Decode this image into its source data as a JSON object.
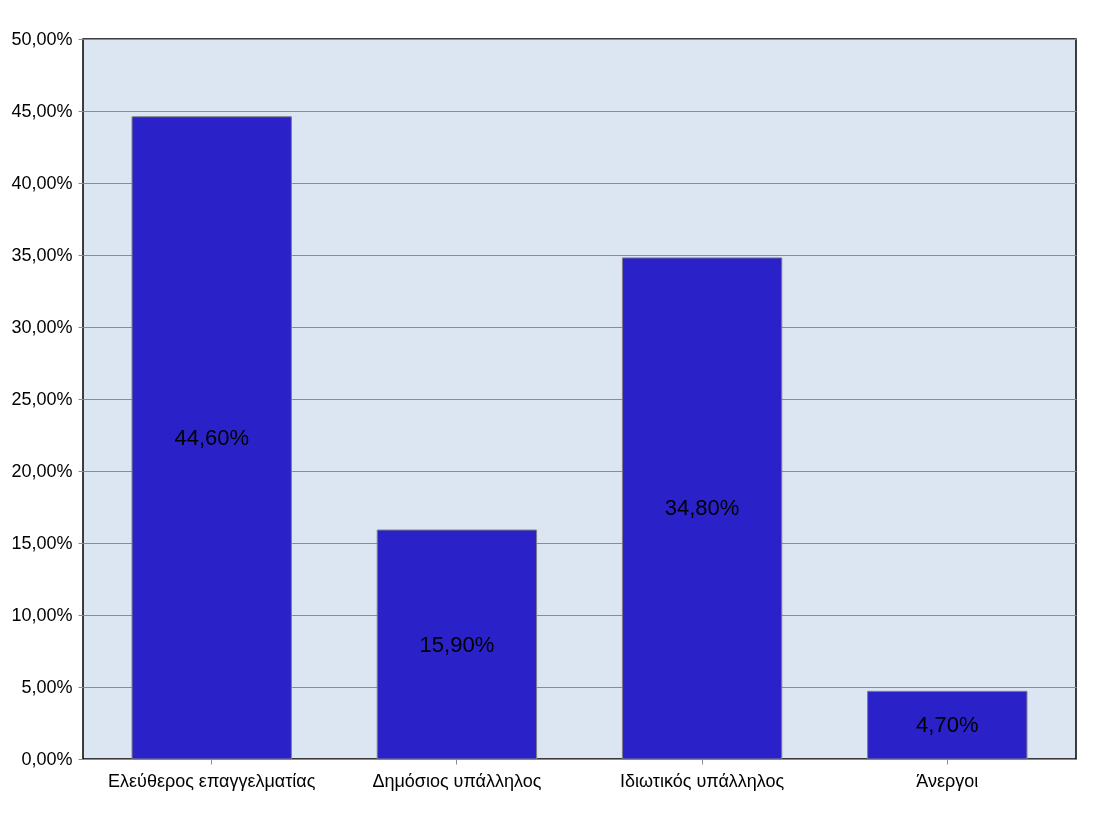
{
  "chart_data": {
    "type": "bar",
    "categories": [
      "Ελεύθερος επαγγελματίας",
      "Δημόσιος υπάλληλος",
      "Ιδιωτικός υπάλληλος",
      "Άνεργοι"
    ],
    "series": [
      {
        "color": "#2a22c8",
        "values": [
          44.6,
          15.9,
          34.8,
          4.7
        ]
      }
    ],
    "value_labels": [
      "44,60%",
      "15,90%",
      "34,80%",
      "4,70%"
    ],
    "ylim": [
      0,
      50
    ],
    "yticks": [
      {
        "value": 0,
        "label": "0,00%"
      },
      {
        "value": 5,
        "label": "5,00%"
      },
      {
        "value": 10,
        "label": "10,00%"
      },
      {
        "value": 15,
        "label": "15,00%"
      },
      {
        "value": 20,
        "label": "20,00%"
      },
      {
        "value": 25,
        "label": "25,00%"
      },
      {
        "value": 30,
        "label": "30,00%"
      },
      {
        "value": 35,
        "label": "35,00%"
      },
      {
        "value": 40,
        "label": "40,00%"
      },
      {
        "value": 45,
        "label": "45,00%"
      },
      {
        "value": 50,
        "label": "50,00%"
      }
    ],
    "grid": "y"
  }
}
